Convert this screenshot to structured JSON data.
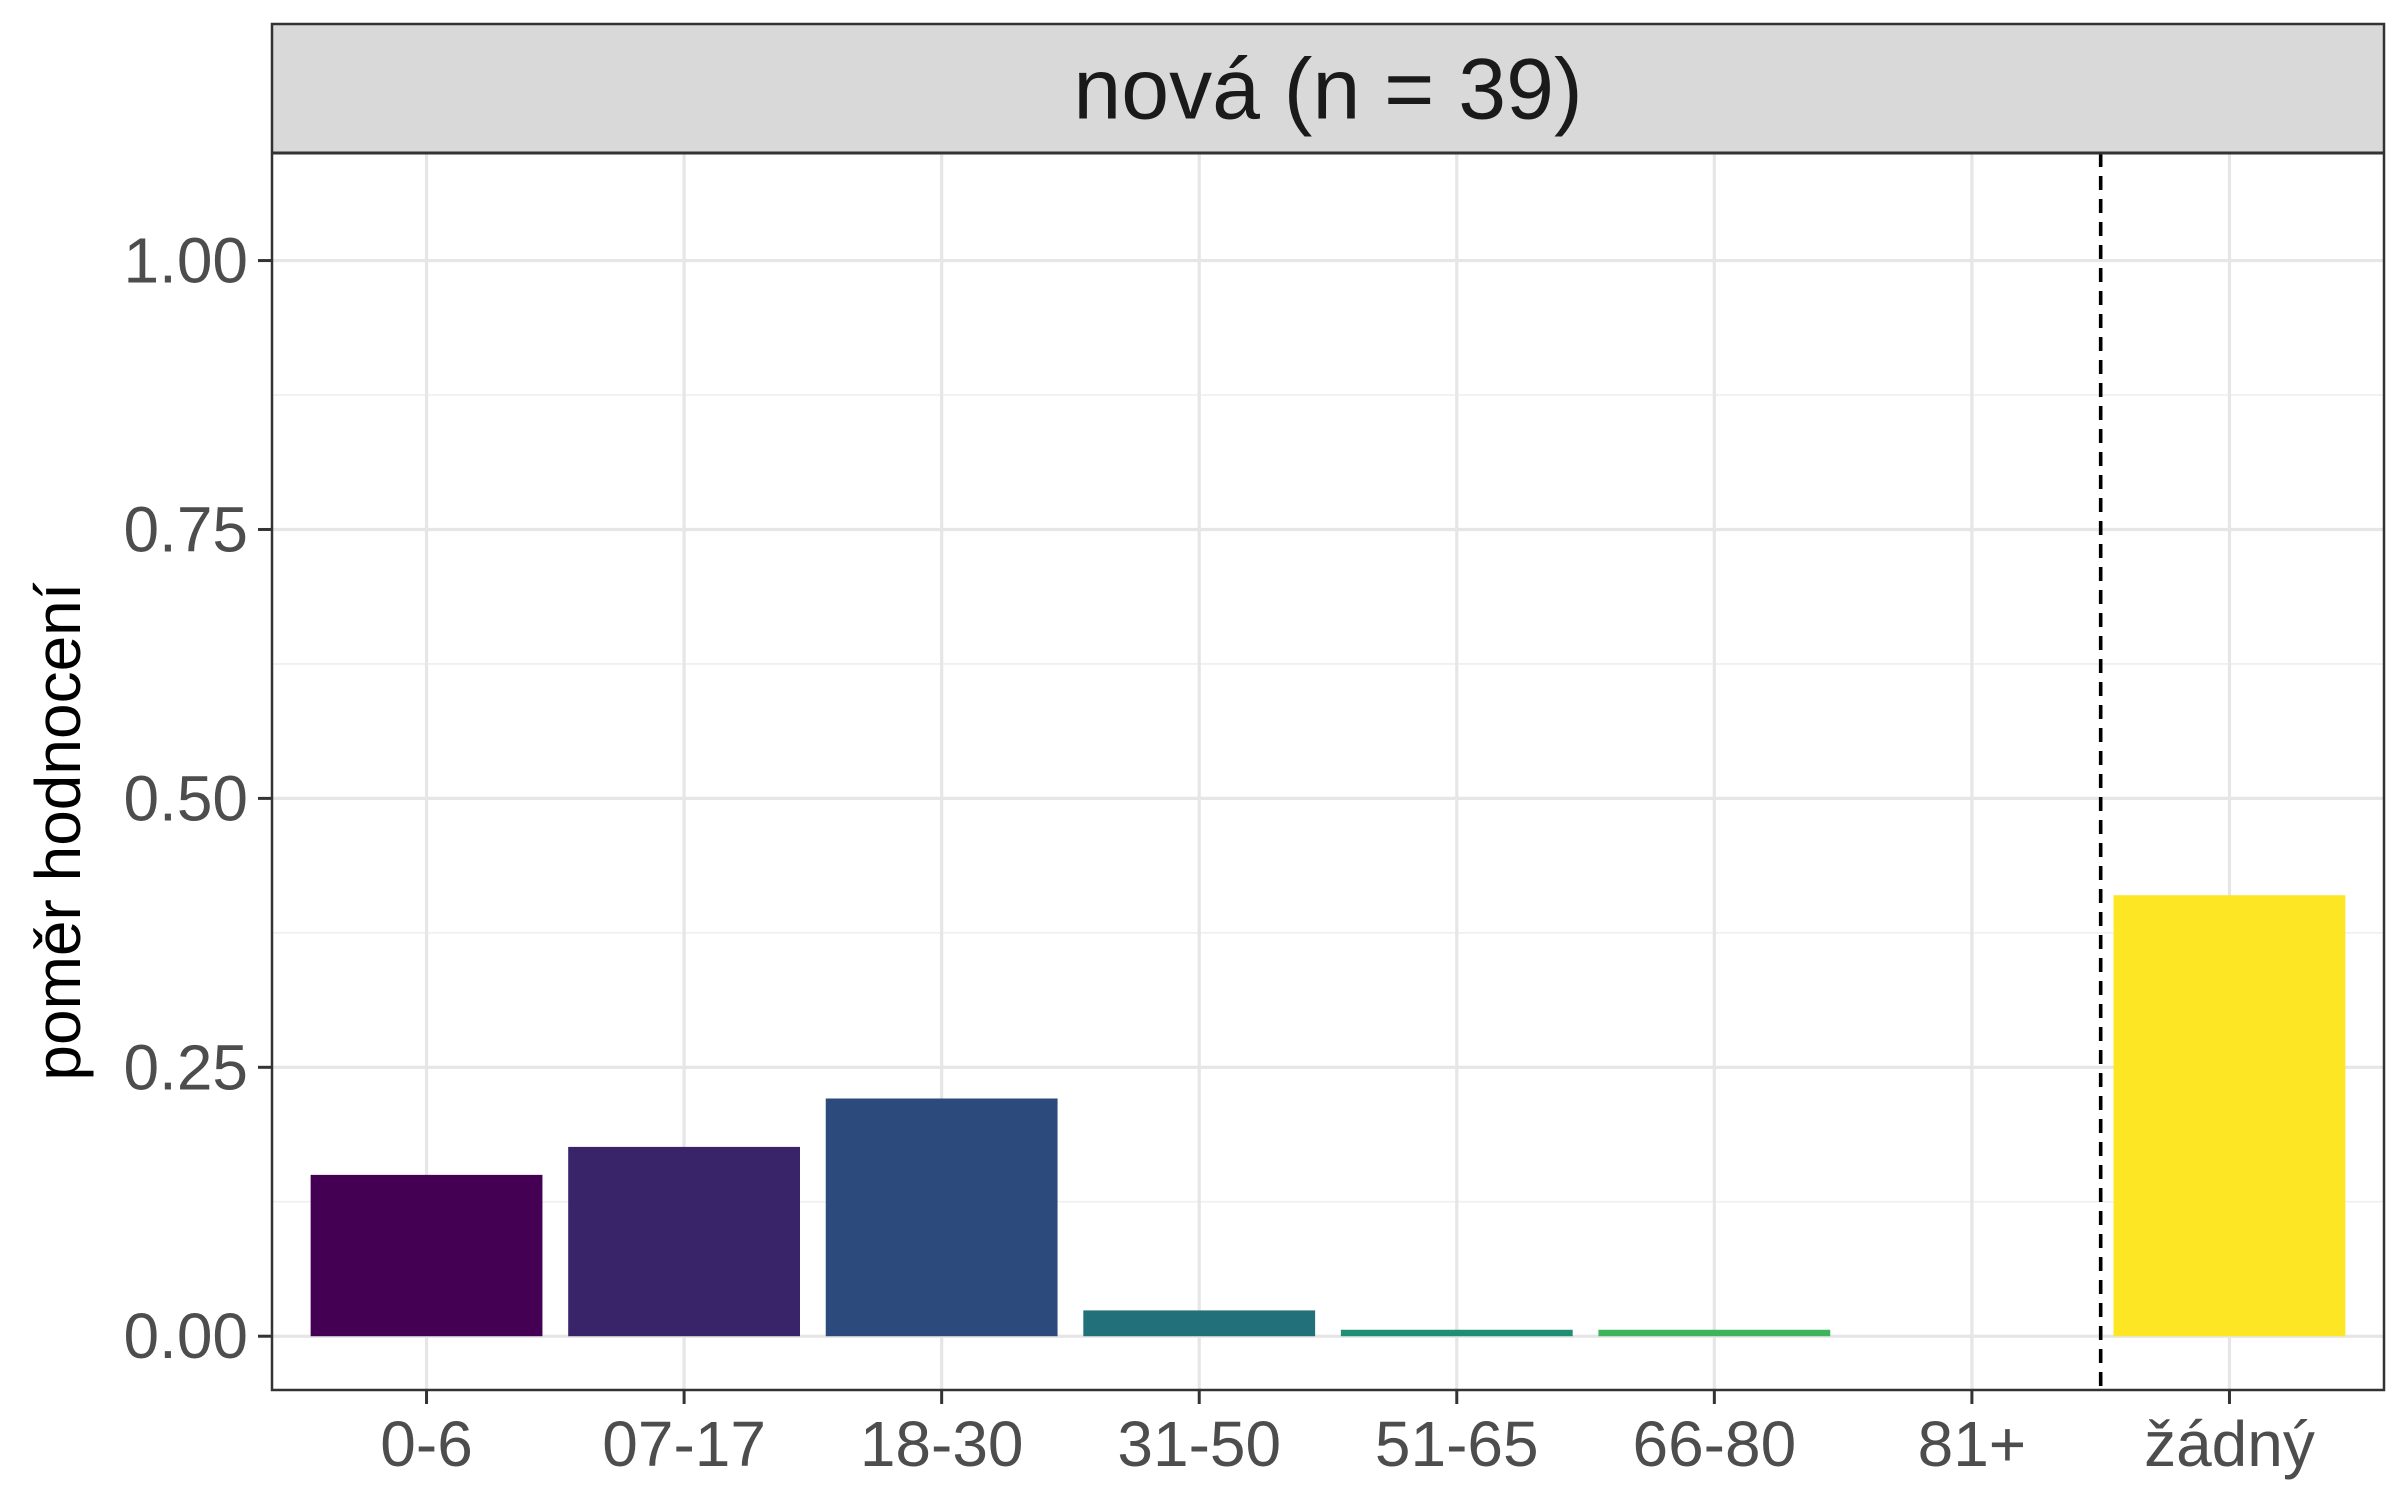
{
  "chart_data": {
    "type": "bar",
    "panel_title": "nová (n = 39)",
    "ylabel": "poměr hodnocení",
    "xlabel": "",
    "categories": [
      "0-6",
      "07-17",
      "18-30",
      "31-50",
      "51-65",
      "66-80",
      "81+",
      "žádný"
    ],
    "values": [
      0.15,
      0.176,
      0.221,
      0.024,
      0.006,
      0.006,
      0.0,
      0.41
    ],
    "colors": [
      "#440154",
      "#3A2469",
      "#2C4A7B",
      "#22707A",
      "#1F8E75",
      "#3DB45A",
      "#9FD83A",
      "#FDE725"
    ],
    "ylim": [
      -0.05,
      1.1
    ],
    "yticks": [
      0,
      0.25,
      0.5,
      0.75,
      1.0
    ],
    "ytick_labels": [
      "0.00",
      "0.25",
      "0.50",
      "0.75",
      "1.00"
    ],
    "grid": true,
    "reference_line": {
      "style": "dashed",
      "between": [
        "81+",
        "žádný"
      ]
    }
  }
}
